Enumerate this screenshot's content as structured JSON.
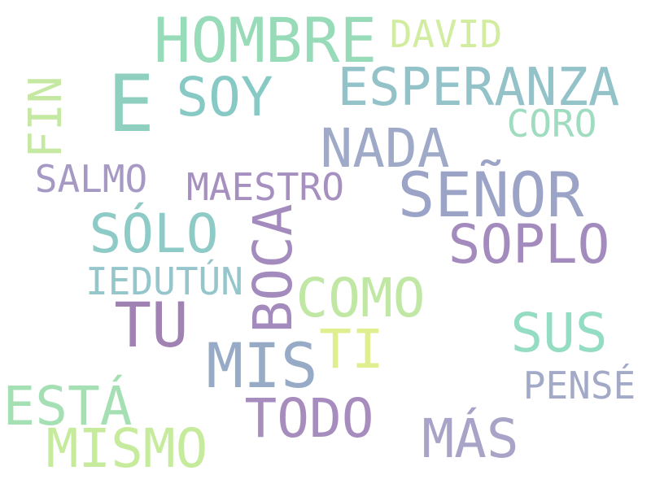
{
  "words": [
    {
      "text": "HOMBRE",
      "color": "#98dbb9"
    },
    {
      "text": "DAVID",
      "color": "#d2eca0"
    },
    {
      "text": "E",
      "color": "#8ecfc0"
    },
    {
      "text": "SOY",
      "color": "#87c9c4"
    },
    {
      "text": "ESPERANZA",
      "color": "#93c2c9"
    },
    {
      "text": "FIN",
      "color": "#c5e8a2"
    },
    {
      "text": "CORO",
      "color": "#9fdcc0"
    },
    {
      "text": "NADA",
      "color": "#9eaac8"
    },
    {
      "text": "SEÑOR",
      "color": "#9ba4c6"
    },
    {
      "text": "SALMO",
      "color": "#a69ac5"
    },
    {
      "text": "MAESTRO",
      "color": "#a690c0"
    },
    {
      "text": "SÓLO",
      "color": "#8fcbc6"
    },
    {
      "text": "BOCA",
      "color": "#a48bbd"
    },
    {
      "text": "SOPLO",
      "color": "#a48bbd"
    },
    {
      "text": "IEDUTÚN",
      "color": "#95c6cc"
    },
    {
      "text": "COMO",
      "color": "#c0e8a4"
    },
    {
      "text": "TU",
      "color": "#a183b3"
    },
    {
      "text": "TI",
      "color": "#dfef8f"
    },
    {
      "text": "SUS",
      "color": "#94dcc2"
    },
    {
      "text": "MIS",
      "color": "#97aac6"
    },
    {
      "text": "PENSÉ",
      "color": "#a2aac8"
    },
    {
      "text": "ESTÁ",
      "color": "#a5e0b4"
    },
    {
      "text": "TODO",
      "color": "#a68dbd"
    },
    {
      "text": "MISMO",
      "color": "#c6eb9c"
    },
    {
      "text": "MÁS",
      "color": "#a8a4c8"
    }
  ]
}
